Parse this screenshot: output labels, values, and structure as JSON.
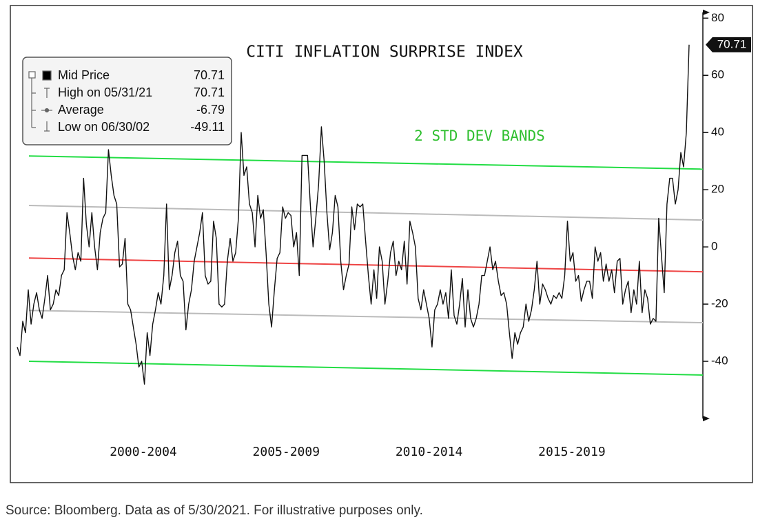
{
  "chart_data": {
    "type": "line",
    "title": "CITI INFLATION SURPRISE INDEX",
    "annotation": "2 STD DEV BANDS",
    "source": "Source: Bloomberg. Data as of 5/30/2021. For illustrative purposes only.",
    "periods": [
      "2000-2004",
      "2005-2009",
      "2010-2014",
      "2015-2019"
    ],
    "xlim": [
      0,
      242
    ],
    "ylim": [
      -60,
      82
    ],
    "yticks": [
      80,
      60,
      40,
      20,
      0,
      -20,
      -40
    ],
    "legend": [
      {
        "label": "Mid Price",
        "value": 70.71
      },
      {
        "label": "High on 05/31/21",
        "value": 70.71
      },
      {
        "label": "Average",
        "value": -6.79
      },
      {
        "label": "Low on 06/30/02",
        "value": -49.11
      }
    ],
    "bands": [
      {
        "color": "#22dd44",
        "values": [
          31.8,
          27.2
        ]
      },
      {
        "color": "#bbbbbb",
        "values": [
          14.5,
          9.4
        ]
      },
      {
        "color": "#ee4444",
        "values": [
          -3.9,
          -8.7
        ]
      },
      {
        "color": "#bbbbbb",
        "values": [
          -22.2,
          -26.5
        ]
      },
      {
        "color": "#22dd44",
        "values": [
          -40,
          -44.8
        ]
      }
    ],
    "series": [
      {
        "name": "Mid Price",
        "color": "#111111",
        "values": [
          -35,
          -38,
          -26,
          -30,
          -15,
          -27,
          -20,
          -16,
          -22,
          -25,
          -18,
          -10,
          -22,
          -20,
          -15,
          -17,
          -10,
          -8,
          12,
          5,
          -3,
          -8,
          -2,
          -5,
          24,
          8,
          0,
          12,
          0,
          -8,
          5,
          10,
          12,
          34,
          25,
          18,
          15,
          -7,
          -6,
          3,
          -20,
          -22,
          -28,
          -34,
          -42,
          -40,
          -48,
          -30,
          -38,
          -27,
          -22,
          -16,
          -20,
          -10,
          15,
          -15,
          -10,
          -2,
          2,
          -10,
          -12,
          -29,
          -20,
          -15,
          -5,
          0,
          5,
          12,
          -10,
          -13,
          -12,
          9,
          3,
          -20,
          -21,
          -20,
          -5,
          3,
          -5,
          -2,
          10,
          40,
          25,
          28,
          15,
          12,
          0,
          18,
          10,
          13,
          -2,
          -20,
          -28,
          -15,
          -4,
          -2,
          14,
          10,
          12,
          11,
          0,
          5,
          -10,
          32,
          32,
          32,
          15,
          0,
          10,
          22,
          42,
          30,
          12,
          -1,
          5,
          18,
          14,
          -5,
          -15,
          -10,
          -6,
          14,
          6,
          15,
          14,
          15,
          2,
          -10,
          -20,
          -8,
          -18,
          0,
          -5,
          -20,
          -12,
          -2,
          2,
          -10,
          -5,
          -8,
          2,
          -13,
          9,
          5,
          0,
          -18,
          -22,
          -15,
          -20,
          -25,
          -35,
          -22,
          -20,
          -15,
          -20,
          -16,
          -25,
          -8,
          -24,
          -27,
          -20,
          -11,
          -28,
          -15,
          -25,
          -28,
          -25,
          -20,
          -10,
          -10,
          -5,
          0,
          -8,
          -5,
          -12,
          -17,
          -16,
          -20,
          -30,
          -39,
          -30,
          -34,
          -30,
          -28,
          -20,
          -26,
          -22,
          -15,
          -5,
          -20,
          -13,
          -15,
          -18,
          -20,
          -17,
          -18,
          -16,
          -18,
          -10,
          9,
          -5,
          -2,
          -12,
          -10,
          -19,
          -15,
          -12,
          -12,
          -18,
          0,
          -5,
          -2,
          -12,
          -6,
          -12,
          -8,
          -16,
          -5,
          -4,
          -20,
          -15,
          -12,
          -23,
          -15,
          -20,
          -5,
          -23,
          -15,
          -18,
          -27,
          -25,
          -26,
          10,
          -3,
          -16,
          15,
          24,
          24,
          15,
          20,
          33,
          28,
          40,
          70.71
        ]
      }
    ]
  }
}
